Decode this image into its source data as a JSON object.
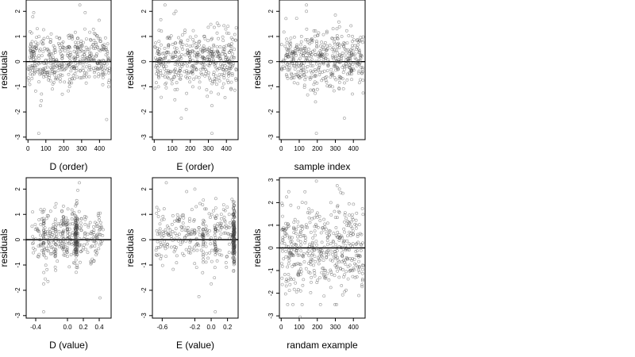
{
  "chart_data": [
    {
      "type": "scatter",
      "title": "",
      "xlabel": "D (order)",
      "ylabel": "residuals",
      "xticks": [
        0,
        100,
        200,
        300,
        400
      ],
      "yticks": [
        -3,
        -2,
        -1,
        0,
        1,
        2
      ],
      "xlim": [
        -10,
        465
      ],
      "ylim": [
        -3.1,
        2.45
      ],
      "reference_line": 0,
      "x_range": [
        1,
        455
      ],
      "y_center": 0.1,
      "y_spread": 0.55,
      "outliers": [
        [
          60,
          -2.85
        ],
        [
          290,
          2.25
        ],
        [
          320,
          1.95
        ],
        [
          440,
          -2.3
        ],
        [
          70,
          -1.75
        ],
        [
          75,
          -1.55
        ]
      ],
      "n_points": 455,
      "seed": 11
    },
    {
      "type": "scatter",
      "title": "",
      "xlabel": "E (order)",
      "ylabel": "residuals",
      "xticks": [
        0,
        100,
        200,
        300,
        400
      ],
      "yticks": [
        -3,
        -2,
        -1,
        0,
        1,
        2
      ],
      "xlim": [
        -10,
        465
      ],
      "ylim": [
        -3.1,
        2.45
      ],
      "reference_line": 0,
      "x_range": [
        1,
        455
      ],
      "y_center": 0.1,
      "y_spread": 0.55,
      "outliers": [
        [
          60,
          2.25
        ],
        [
          110,
          1.9
        ],
        [
          120,
          2.0
        ],
        [
          320,
          -2.85
        ],
        [
          150,
          -2.25
        ],
        [
          320,
          -1.75
        ]
      ],
      "n_points": 455,
      "seed": 23
    },
    {
      "type": "scatter",
      "title": "",
      "xlabel": "sample index",
      "ylabel": "residuals",
      "xticks": [
        0,
        100,
        200,
        300,
        400
      ],
      "yticks": [
        -3,
        -2,
        -1,
        0,
        1,
        2
      ],
      "xlim": [
        -10,
        465
      ],
      "ylim": [
        -3.1,
        2.45
      ],
      "reference_line": 0,
      "x_range": [
        1,
        455
      ],
      "y_center": 0.05,
      "y_spread": 0.55,
      "outliers": [
        [
          140,
          2.25
        ],
        [
          140,
          2.0
        ],
        [
          195,
          -2.85
        ],
        [
          350,
          -2.25
        ],
        [
          300,
          1.85
        ],
        [
          190,
          -1.6
        ]
      ],
      "n_points": 455,
      "seed": 37
    },
    {
      "type": "scatter",
      "title": "",
      "xlabel": "D (value)",
      "ylabel": "residuals",
      "xticks": [
        -0.4,
        0.0,
        0.2,
        0.4
      ],
      "xtick_labels": [
        "-0.4",
        "0.0",
        "0.2",
        "0.4"
      ],
      "yticks": [
        -3,
        -2,
        -1,
        0,
        1,
        2
      ],
      "xlim": [
        -0.52,
        0.55
      ],
      "ylim": [
        -3.1,
        2.45
      ],
      "reference_line": 0,
      "x_range": [
        -0.45,
        0.45
      ],
      "cluster_x": [
        0.1,
        0.1,
        0.11,
        0.12,
        0.0,
        -0.05,
        -0.15,
        -0.3
      ],
      "y_center": 0.1,
      "y_spread": 0.55,
      "outliers": [
        [
          -0.3,
          -2.85
        ],
        [
          0.15,
          2.25
        ],
        [
          0.13,
          1.95
        ],
        [
          0.41,
          -2.3
        ],
        [
          -0.3,
          -1.75
        ],
        [
          -0.28,
          -1.55
        ]
      ],
      "n_points": 455,
      "seed": 51
    },
    {
      "type": "scatter",
      "title": "",
      "xlabel": "E (value)",
      "ylabel": "residuals",
      "xticks": [
        -0.6,
        -0.2,
        0.0,
        0.2
      ],
      "xtick_labels": [
        "-0.6",
        "-0.2",
        "0.0",
        "0.2"
      ],
      "yticks": [
        -3,
        -2,
        -1,
        0,
        1,
        2
      ],
      "xlim": [
        -0.72,
        0.33
      ],
      "ylim": [
        -3.1,
        2.45
      ],
      "reference_line": 0,
      "x_range": [
        -0.68,
        0.28
      ],
      "cluster_x": [
        0.28,
        0.28,
        0.28,
        0.28,
        0.27,
        0.27,
        0.05,
        -0.1
      ],
      "y_center": 0.1,
      "y_spread": 0.55,
      "outliers": [
        [
          -0.55,
          2.25
        ],
        [
          -0.3,
          1.9
        ],
        [
          -0.2,
          2.0
        ],
        [
          0.05,
          -2.85
        ],
        [
          -0.15,
          -2.25
        ],
        [
          0.0,
          -1.75
        ]
      ],
      "n_points": 455,
      "seed": 67
    },
    {
      "type": "scatter",
      "title": "",
      "xlabel": "randam example",
      "ylabel": "residuals",
      "xticks": [
        0,
        100,
        200,
        300,
        400
      ],
      "yticks": [
        -3,
        -2,
        -1,
        0,
        1,
        2,
        3
      ],
      "xlim": [
        -10,
        465
      ],
      "ylim": [
        -3.1,
        3.1
      ],
      "reference_line": 0,
      "x_range": [
        1,
        455
      ],
      "y_center": 0.0,
      "y_spread": 1.0,
      "outliers": [
        [
          105,
          -3.05
        ],
        [
          195,
          2.95
        ],
        [
          310,
          2.75
        ],
        [
          30,
          2.25
        ],
        [
          430,
          -2.1
        ]
      ],
      "n_points": 455,
      "seed": 83
    }
  ]
}
